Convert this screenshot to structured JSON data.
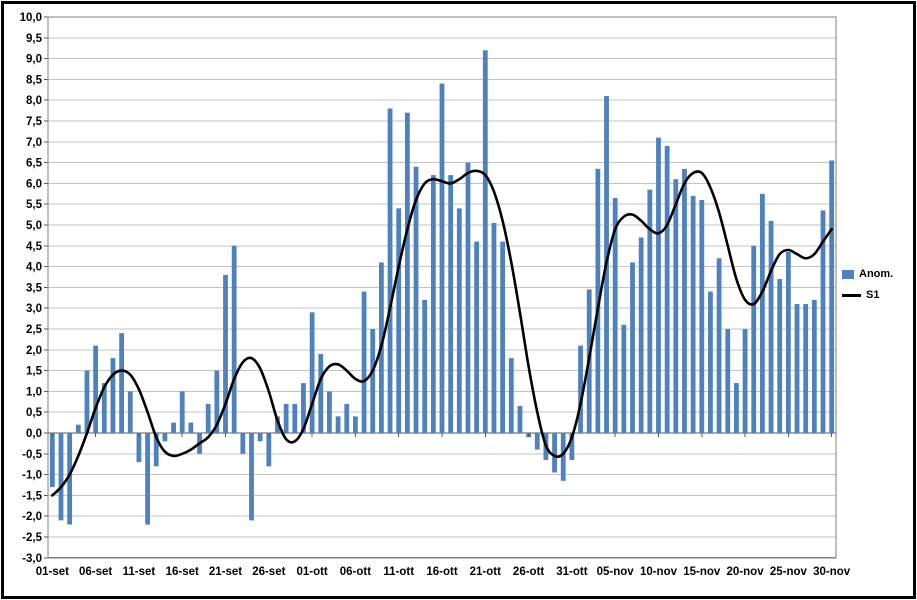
{
  "window": {
    "background": "#FFFFFF",
    "frame_color": "#000000"
  },
  "legend": {
    "anom_label": "Anom.",
    "s1_label": "S1",
    "anom_color": "#4F81BD",
    "s1_color": "#000000"
  },
  "chart_data": {
    "type": "bar",
    "title": "",
    "xlabel": "",
    "ylabel": "",
    "n_points": 91,
    "ylim": [
      -3,
      10
    ],
    "y_step": 0.5,
    "grid": true,
    "legend_position": "right",
    "y_tick_labels": [
      "10,0",
      "9,5",
      "9,0",
      "8,5",
      "8,0",
      "7,5",
      "7,0",
      "6,5",
      "6,0",
      "5,5",
      "5,0",
      "4,5",
      "4,0",
      "3,5",
      "3,0",
      "2,5",
      "2,0",
      "1,5",
      "1,0",
      "0,5",
      "0,0",
      "-0,5",
      "-1,0",
      "-1,5",
      "-2,0",
      "-2,5",
      "-3,0"
    ],
    "x_tick_positions": [
      0,
      5,
      10,
      15,
      20,
      25,
      30,
      35,
      40,
      45,
      50,
      55,
      60,
      65,
      70,
      75,
      80,
      85,
      90
    ],
    "x_tick_labels": [
      "01-set",
      "06-set",
      "11-set",
      "16-set",
      "21-set",
      "26-set",
      "01-ott",
      "06-ott",
      "11-ott",
      "16-ott",
      "21-ott",
      "26-ott",
      "31-ott",
      "05-nov",
      "10-nov",
      "15-nov",
      "20-nov",
      "25-nov",
      "30-nov"
    ],
    "series": [
      {
        "name": "Anom.",
        "type": "bar",
        "color": "#4F81BD",
        "values": [
          -1.3,
          -2.1,
          -2.2,
          0.2,
          1.5,
          2.1,
          1.2,
          1.8,
          2.4,
          1.0,
          -0.7,
          -2.2,
          -0.8,
          -0.2,
          0.25,
          1.0,
          0.25,
          -0.5,
          0.7,
          1.5,
          3.8,
          4.5,
          -0.5,
          -2.1,
          -0.2,
          -0.8,
          0.4,
          0.7,
          0.7,
          1.2,
          2.9,
          1.9,
          1.0,
          0.4,
          0.7,
          0.4,
          3.4,
          2.5,
          4.1,
          7.8,
          5.4,
          7.7,
          6.4,
          3.2,
          6.2,
          8.4,
          6.2,
          5.4,
          6.5,
          4.6,
          9.2,
          5.05,
          4.6,
          1.8,
          0.65,
          -0.1,
          -0.4,
          -0.65,
          -0.95,
          -1.15,
          -0.65,
          2.1,
          3.45,
          6.35,
          8.1,
          5.65,
          2.6,
          4.1,
          4.7,
          5.85,
          7.1,
          6.9,
          6.1,
          6.35,
          5.7,
          5.6,
          3.4,
          4.2,
          2.5,
          1.2,
          2.5,
          4.5,
          5.75,
          5.1,
          3.7,
          4.35,
          3.1,
          3.1,
          3.2,
          5.35,
          6.55
        ]
      },
      {
        "name": "S1",
        "type": "line",
        "color": "#000000",
        "values": [
          -1.5,
          -1.3,
          -1.0,
          -0.55,
          0.0,
          0.6,
          1.1,
          1.4,
          1.5,
          1.4,
          1.05,
          0.5,
          -0.1,
          -0.45,
          -0.55,
          -0.5,
          -0.4,
          -0.25,
          -0.1,
          0.2,
          0.7,
          1.3,
          1.7,
          1.8,
          1.55,
          1.0,
          0.3,
          -0.15,
          -0.2,
          0.1,
          0.7,
          1.3,
          1.6,
          1.65,
          1.5,
          1.3,
          1.25,
          1.5,
          2.1,
          3.0,
          4.0,
          4.9,
          5.6,
          6.0,
          6.1,
          6.05,
          6.0,
          6.1,
          6.25,
          6.3,
          6.2,
          5.8,
          5.1,
          4.1,
          2.9,
          1.6,
          0.5,
          -0.3,
          -0.55,
          -0.5,
          -0.1,
          0.7,
          1.8,
          3.0,
          4.1,
          4.9,
          5.2,
          5.25,
          5.1,
          4.9,
          4.8,
          5.0,
          5.5,
          6.0,
          6.25,
          6.25,
          5.9,
          5.3,
          4.5,
          3.7,
          3.2,
          3.1,
          3.4,
          3.9,
          4.3,
          4.4,
          4.3,
          4.2,
          4.3,
          4.6,
          4.9
        ]
      }
    ],
    "colors": {
      "gridline": "#C3C3C3",
      "axis": "#595959",
      "plot_border": "#808080"
    }
  }
}
